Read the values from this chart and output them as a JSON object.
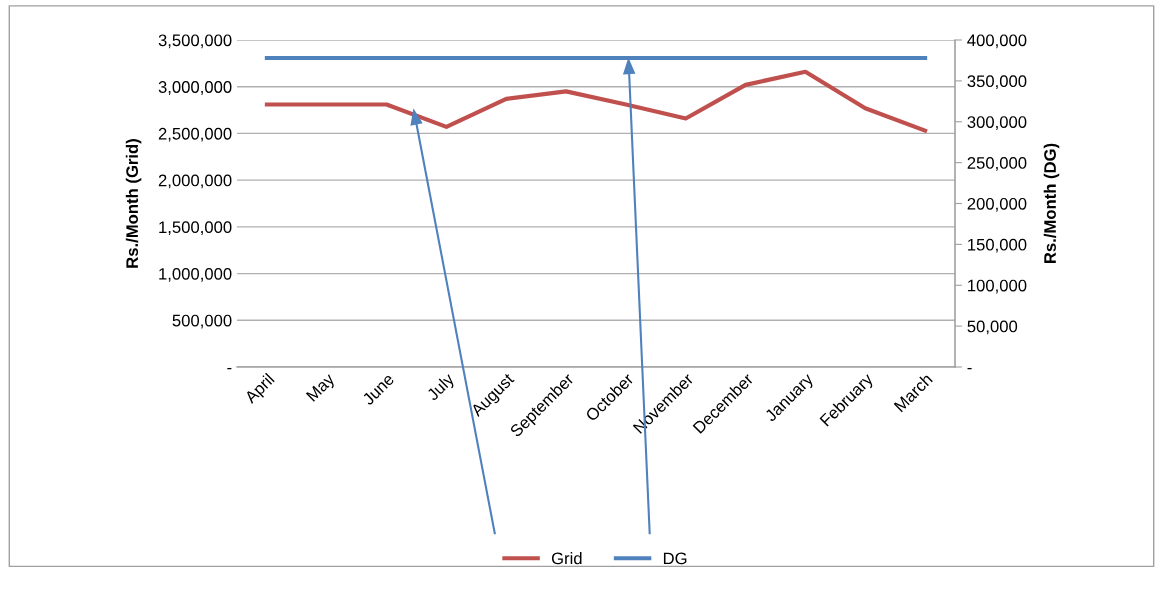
{
  "chart_data": {
    "type": "line",
    "categories": [
      "April",
      "May",
      "June",
      "July",
      "August",
      "September",
      "October",
      "November",
      "December",
      "January",
      "February",
      "March"
    ],
    "series": [
      {
        "name": "Grid",
        "color": "#c0504d",
        "values": [
          2810000,
          2810000,
          2810000,
          2570000,
          2870000,
          2950000,
          2810000,
          2660000,
          3020000,
          3160000,
          2770000,
          2530000
        ]
      },
      {
        "name": "DG",
        "color": "#4f81bd",
        "axis": "y2",
        "values": [
          378000,
          378000,
          378000,
          378000,
          378000,
          378000,
          378000,
          378000,
          378000,
          378000,
          378000,
          378000
        ]
      }
    ],
    "ylabel": "Rs./Month (Grid)",
    "y2label": "Rs./Month (DG)",
    "ylim": [
      0,
      3500000
    ],
    "yticks": [
      {
        "value": 0,
        "label": "-"
      },
      {
        "value": 500000,
        "label": "500,000"
      },
      {
        "value": 1000000,
        "label": "1,000,000"
      },
      {
        "value": 1500000,
        "label": "1,500,000"
      },
      {
        "value": 2000000,
        "label": "2,000,000"
      },
      {
        "value": 2500000,
        "label": "2,500,000"
      },
      {
        "value": 3000000,
        "label": "3,000,000"
      },
      {
        "value": 3500000,
        "label": "3,500,000"
      }
    ],
    "y2lim": [
      0,
      400000
    ],
    "y2ticks": [
      {
        "value": 0,
        "label": "-"
      },
      {
        "value": 50000,
        "label": "50,000"
      },
      {
        "value": 100000,
        "label": "100,000"
      },
      {
        "value": 150000,
        "label": "150,000"
      },
      {
        "value": 200000,
        "label": "200,000"
      },
      {
        "value": 250000,
        "label": "250,000"
      },
      {
        "value": 300000,
        "label": "300,000"
      },
      {
        "value": 350000,
        "label": "350,000"
      },
      {
        "value": 400000,
        "label": "400,000"
      }
    ],
    "grid": "y",
    "legend": "bottom",
    "marker": "none",
    "line_style": "solid"
  }
}
